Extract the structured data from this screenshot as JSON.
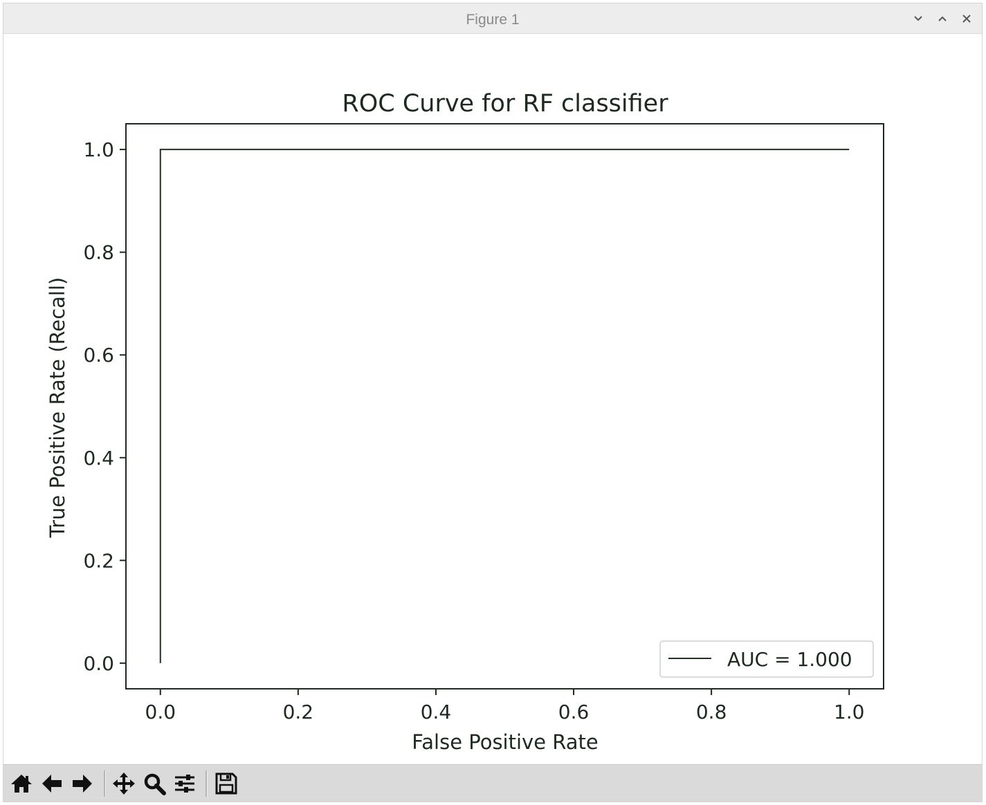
{
  "window": {
    "title": "Figure 1",
    "controls": [
      "minimize",
      "maximize",
      "close"
    ]
  },
  "toolbar": {
    "buttons": [
      {
        "name": "home",
        "icon": "home-icon"
      },
      {
        "name": "back",
        "icon": "arrow-left-icon"
      },
      {
        "name": "forward",
        "icon": "arrow-right-icon"
      },
      {
        "name": "pan",
        "icon": "move-icon"
      },
      {
        "name": "zoom",
        "icon": "magnifier-icon"
      },
      {
        "name": "configure-subplots",
        "icon": "sliders-icon"
      },
      {
        "name": "save",
        "icon": "floppy-disk-icon"
      }
    ]
  },
  "colors": {
    "line": "#1f3325",
    "axes": "#1c2a1f",
    "titlebar": "#ededed",
    "toolbar": "#dadada"
  },
  "chart_data": {
    "type": "line",
    "title": "ROC Curve for RF classifier",
    "xlabel": "False Positive Rate",
    "ylabel": "True Positive Rate (Recall)",
    "xlim": [
      -0.05,
      1.05
    ],
    "ylim": [
      -0.05,
      1.05
    ],
    "xticks": [
      0.0,
      0.2,
      0.4,
      0.6,
      0.8,
      1.0
    ],
    "yticks": [
      0.0,
      0.2,
      0.4,
      0.6,
      0.8,
      1.0
    ],
    "xtick_labels": [
      "0.0",
      "0.2",
      "0.4",
      "0.6",
      "0.8",
      "1.0"
    ],
    "ytick_labels": [
      "0.0",
      "0.2",
      "0.4",
      "0.6",
      "0.8",
      "1.0"
    ],
    "grid": false,
    "legend_position": "lower-right",
    "series": [
      {
        "name": "AUC = 1.000",
        "x": [
          0.0,
          0.0,
          1.0
        ],
        "y": [
          0.0,
          1.0,
          1.0
        ]
      }
    ]
  }
}
